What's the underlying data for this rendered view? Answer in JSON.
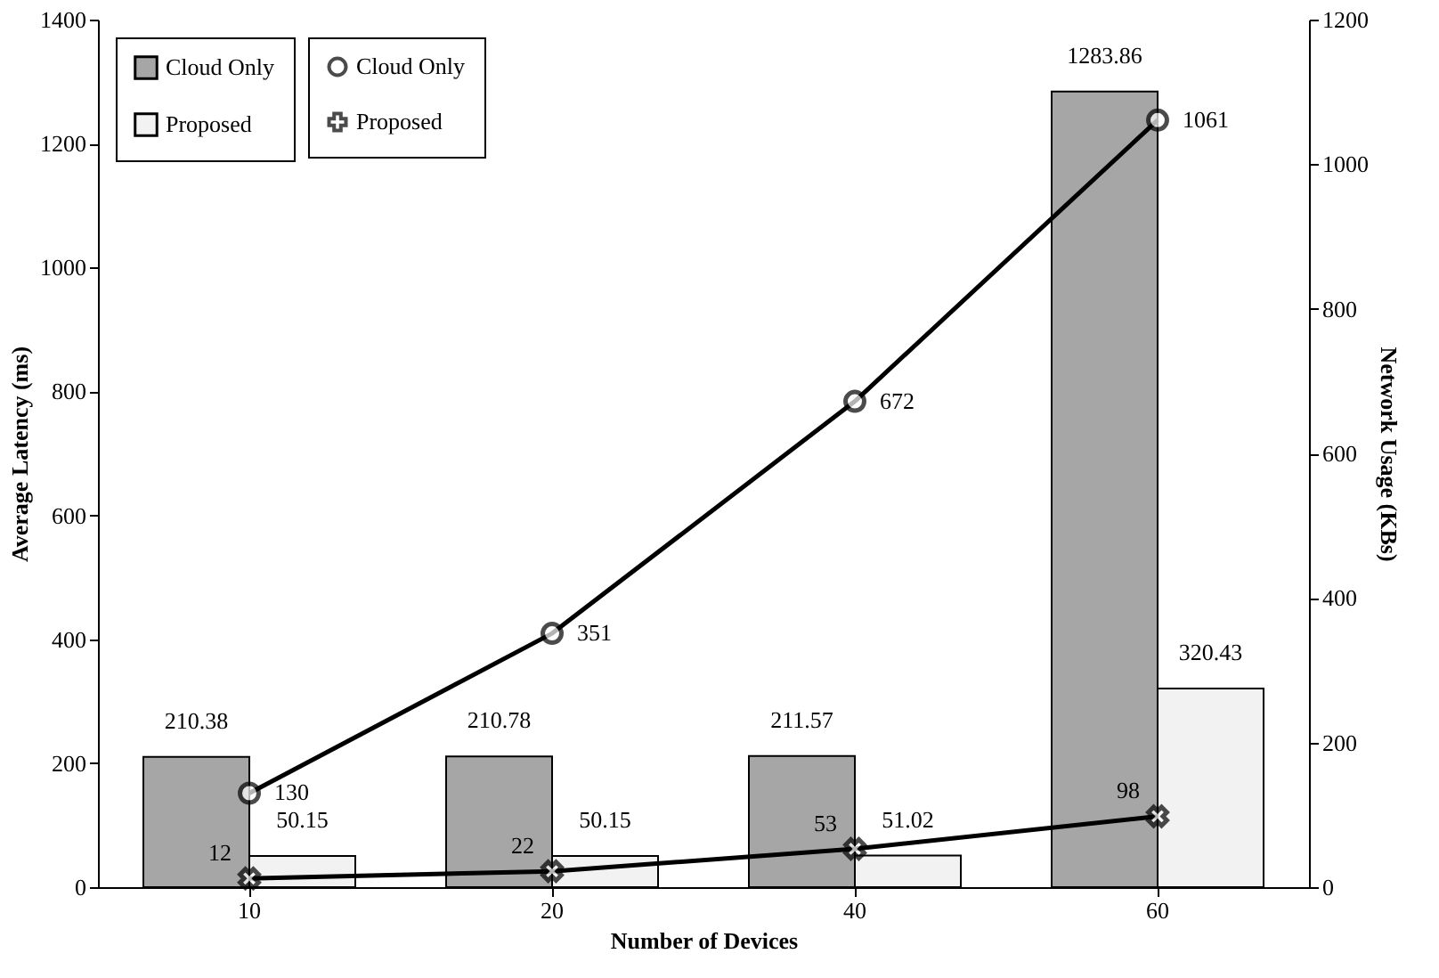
{
  "chart_data": {
    "type": "bar",
    "xlabel": "Number of Devices",
    "ylabel": "Average Latency (ms)",
    "y2label": "Network Usage (KBs)",
    "categories": [
      "10",
      "20",
      "40",
      "60"
    ],
    "series": [
      {
        "name": "Cloud Only",
        "color": "#a6a6a6",
        "values": [
          210.38,
          210.78,
          211.57,
          1283.86
        ]
      },
      {
        "name": "Proposed",
        "color": "#f2f2f2",
        "values": [
          50.15,
          50.15,
          51.02,
          320.43
        ]
      },
      {
        "name": "Cloud Only",
        "type": "line",
        "axis": "y2",
        "marker": "circle",
        "color": "#000000",
        "values": [
          130,
          351,
          672,
          1061
        ]
      },
      {
        "name": "Proposed",
        "type": "line",
        "axis": "y2",
        "marker": "cross",
        "color": "#000000",
        "values": [
          12,
          22,
          53,
          98
        ]
      }
    ],
    "ylim": [
      0,
      1400
    ],
    "yticks": [
      0,
      200,
      400,
      600,
      800,
      1000,
      1200,
      1400
    ],
    "y2lim": [
      0,
      1200
    ],
    "y2ticks": [
      0,
      200,
      400,
      600,
      800,
      1000,
      1200
    ],
    "data_labels": true,
    "grid": false,
    "legend": "top left"
  }
}
